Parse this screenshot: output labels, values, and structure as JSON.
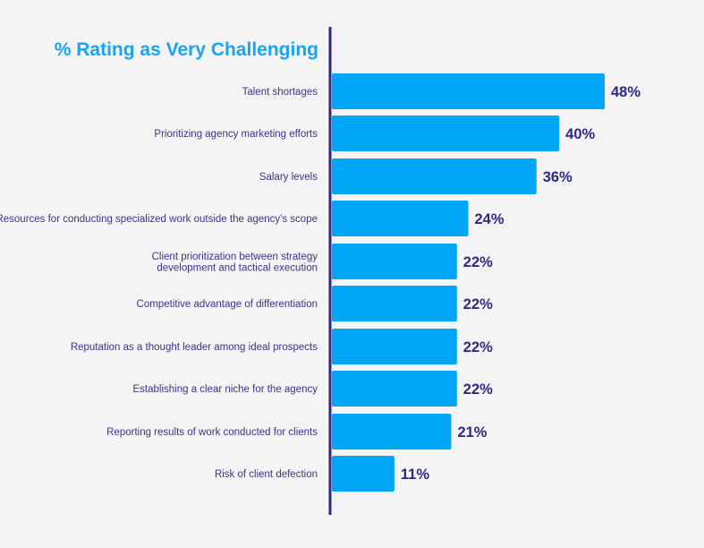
{
  "colors": {
    "background": "#f4f4f5",
    "bar": "#00a6f6",
    "axis": "#2c2a86",
    "title": "#1aa3f0",
    "label": "#3a3488",
    "value": "#2e2880"
  },
  "chart_data": {
    "type": "bar",
    "orientation": "horizontal",
    "title": "% Rating as Very Challenging",
    "xlabel": "",
    "ylabel": "",
    "value_suffix": "%",
    "grid": false,
    "categories": [
      [
        "Talent shortages"
      ],
      [
        "Prioritizing agency marketing efforts"
      ],
      [
        "Salary levels"
      ],
      [
        "Resources for conducting specialized work outside the agency's scope"
      ],
      [
        "Client prioritization between strategy",
        "development and tactical execution"
      ],
      [
        "Competitive advantage of differentiation"
      ],
      [
        "Reputation as a thought leader among ideal prospects"
      ],
      [
        "Establishing a clear niche for the agency"
      ],
      [
        "Reporting results of work conducted for clients"
      ],
      [
        "Risk of client defection"
      ]
    ],
    "values": [
      48,
      40,
      36,
      24,
      22,
      22,
      22,
      22,
      21,
      11
    ]
  }
}
